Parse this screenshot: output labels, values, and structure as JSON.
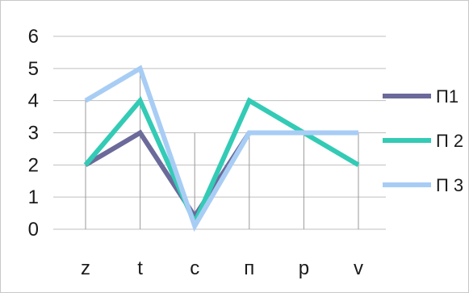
{
  "chart_data": {
    "type": "line",
    "categories": [
      "z",
      "t",
      "c",
      "п",
      "p",
      "v"
    ],
    "series": [
      {
        "name": "П1",
        "values": [
          2,
          3,
          0.4,
          3,
          3,
          3
        ],
        "color": "#6b6a9b"
      },
      {
        "name": "П 2",
        "values": [
          2,
          4,
          0.2,
          4,
          3,
          2
        ],
        "color": "#33cbb5"
      },
      {
        "name": "П 3",
        "values": [
          4,
          5,
          0.1,
          3,
          3,
          3
        ],
        "color": "#a8cdf5"
      }
    ],
    "yticks": [
      0,
      1,
      2,
      3,
      4,
      5,
      6
    ],
    "ylim": [
      0,
      6
    ],
    "grid": {
      "horizontal": true,
      "vertical_at_categories": true
    },
    "legend_position": "right",
    "title": "",
    "xlabel": "",
    "ylabel": ""
  }
}
